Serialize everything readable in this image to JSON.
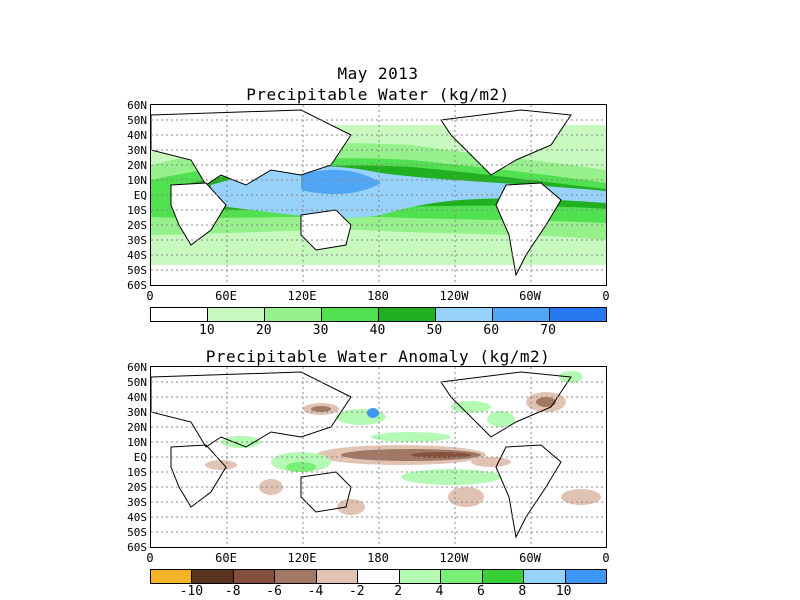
{
  "header": {
    "date": "May 2013",
    "map1_title": "Precipitable Water (kg/m2)",
    "map2_title": "Precipitable Water Anomaly (kg/m2)"
  },
  "axes": {
    "lat_labels": [
      "60N",
      "50N",
      "40N",
      "30N",
      "20N",
      "10N",
      "EQ",
      "10S",
      "20S",
      "30S",
      "40S",
      "50S",
      "60S"
    ],
    "lon_labels": [
      "0",
      "60E",
      "120E",
      "180",
      "120W",
      "60W",
      "0"
    ]
  },
  "colorbar1": {
    "labels": [
      "10",
      "20",
      "30",
      "40",
      "50",
      "60",
      "70"
    ],
    "colors": [
      "#ffffff",
      "#c8fac0",
      "#96f08c",
      "#50e050",
      "#20b020",
      "#96d2fa",
      "#50a5f5",
      "#2878f0"
    ]
  },
  "colorbar2": {
    "labels": [
      "-10",
      "-8",
      "-6",
      "-4",
      "-2",
      "2",
      "4",
      "6",
      "8",
      "10"
    ],
    "colors": [
      "#f5b428",
      "#5a3220",
      "#82503c",
      "#a07864",
      "#e1c3b4",
      "#ffffff",
      "#b4fab4",
      "#78f078",
      "#37d037",
      "#96d2fa",
      "#3c96f5"
    ]
  },
  "map_colors": {
    "land_outline": "#000000",
    "grid": "#888888"
  }
}
